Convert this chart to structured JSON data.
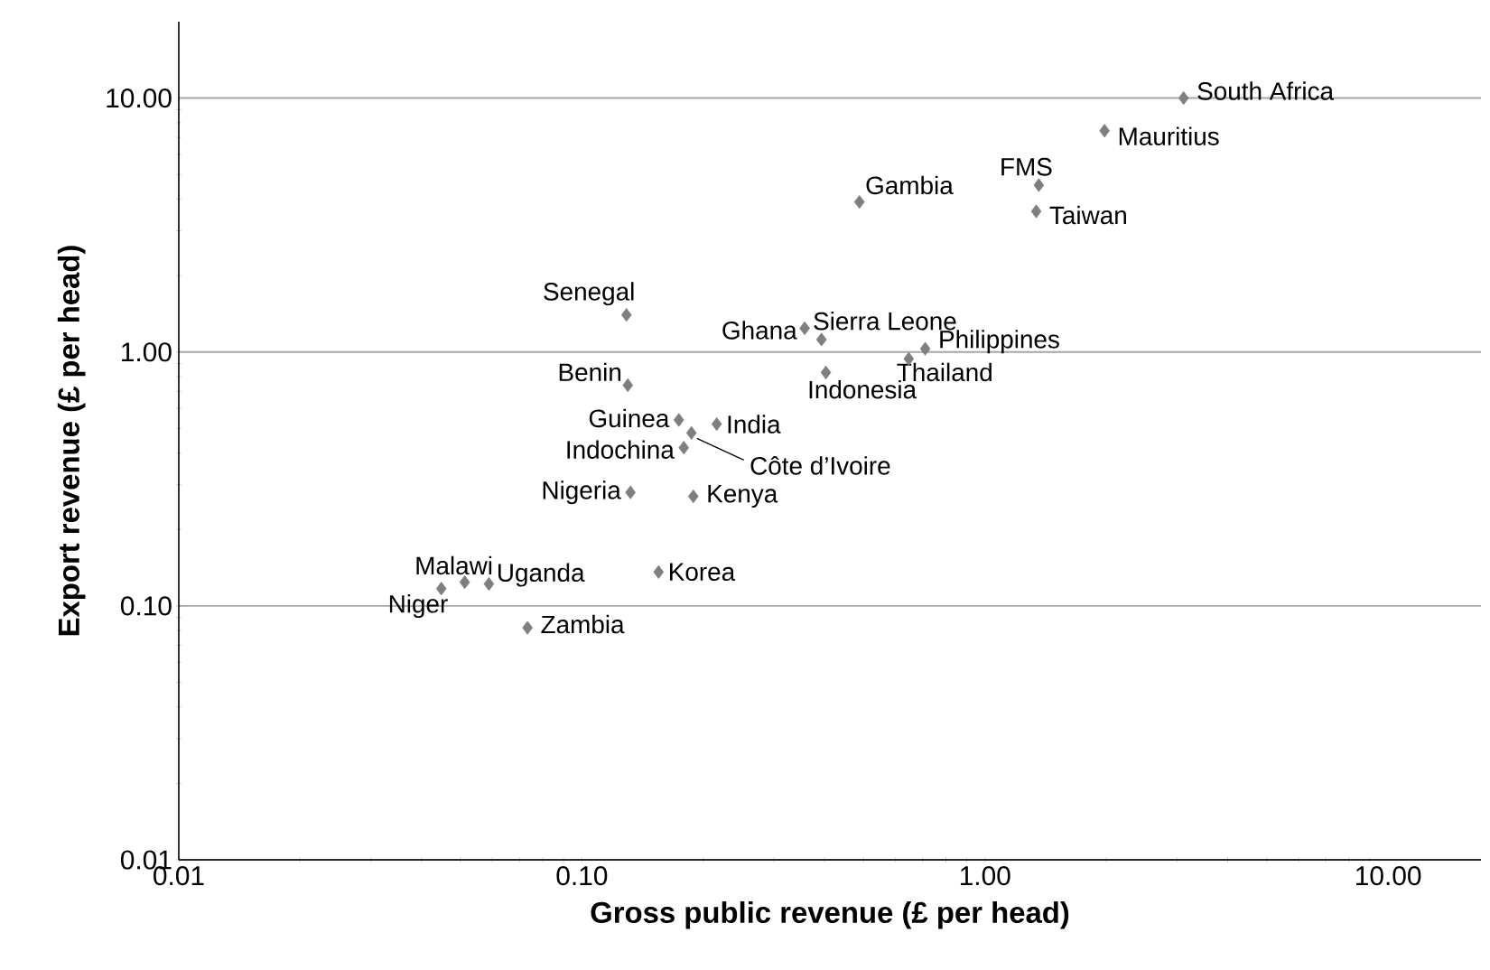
{
  "chart_data": {
    "type": "scatter",
    "xlabel": "Gross public revenue (£ per head)",
    "ylabel": "Export revenue (£ per head)",
    "log": "xy",
    "grid": "y",
    "marker": "diamond",
    "xlim": [
      0.01,
      17
    ],
    "ylim": [
      0.01,
      20
    ],
    "xticks": [
      {
        "value": 0.01,
        "label": "0.01"
      },
      {
        "value": 0.1,
        "label": "0.10"
      },
      {
        "value": 1,
        "label": "1.00"
      },
      {
        "value": 10,
        "label": "10.00"
      }
    ],
    "yticks": [
      {
        "value": 0.01,
        "label": "0.01"
      },
      {
        "value": 0.1,
        "label": "0.10"
      },
      {
        "value": 1,
        "label": "1.00"
      },
      {
        "value": 10,
        "label": "10.00"
      }
    ],
    "series": [
      {
        "color": "#7f7f7f",
        "x": [
          3.11,
          1.98,
          1.36,
          1.34,
          0.488,
          0.129,
          0.357,
          0.393,
          0.711,
          0.647,
          0.403,
          0.13,
          0.174,
          0.187,
          0.216,
          0.179,
          0.132,
          0.189,
          0.155,
          0.0448,
          0.0512,
          0.0588,
          0.0733
        ],
        "values": [
          10.0,
          7.44,
          4.54,
          3.58,
          3.9,
          1.4,
          1.24,
          1.12,
          1.03,
          0.94,
          0.83,
          0.74,
          0.54,
          0.48,
          0.52,
          0.42,
          0.28,
          0.27,
          0.136,
          0.117,
          0.124,
          0.122,
          0.082
        ]
      }
    ],
    "annotations": [
      {
        "text": "South Africa",
        "x": 3.11,
        "y": 10.0
      },
      {
        "text": "Mauritius",
        "x": 1.98,
        "y": 7.44
      },
      {
        "text": "FMS",
        "x": 1.36,
        "y": 4.54
      },
      {
        "text": "Taiwan",
        "x": 1.34,
        "y": 3.58
      },
      {
        "text": "Gambia",
        "x": 0.488,
        "y": 3.9
      },
      {
        "text": "Senegal",
        "x": 0.129,
        "y": 1.4
      },
      {
        "text": "Ghana",
        "x": 0.357,
        "y": 1.24
      },
      {
        "text": "Sierra Leone",
        "x": 0.393,
        "y": 1.12
      },
      {
        "text": "Philippines",
        "x": 0.711,
        "y": 1.03
      },
      {
        "text": "Thailand",
        "x": 0.647,
        "y": 0.94
      },
      {
        "text": "Indonesia",
        "x": 0.403,
        "y": 0.83
      },
      {
        "text": "Benin",
        "x": 0.13,
        "y": 0.74
      },
      {
        "text": "Guinea",
        "x": 0.174,
        "y": 0.54
      },
      {
        "text": "Côte d’Ivoire",
        "x": 0.187,
        "y": 0.48
      },
      {
        "text": "India",
        "x": 0.216,
        "y": 0.52
      },
      {
        "text": "Indochina",
        "x": 0.179,
        "y": 0.42
      },
      {
        "text": "Nigeria",
        "x": 0.132,
        "y": 0.28
      },
      {
        "text": "Kenya",
        "x": 0.189,
        "y": 0.27
      },
      {
        "text": "Korea",
        "x": 0.155,
        "y": 0.136
      },
      {
        "text": "Niger",
        "x": 0.0448,
        "y": 0.117
      },
      {
        "text": "Malawi",
        "x": 0.0512,
        "y": 0.124
      },
      {
        "text": "Uganda",
        "x": 0.0588,
        "y": 0.122
      },
      {
        "text": "Zambia",
        "x": 0.0733,
        "y": 0.082
      }
    ]
  }
}
